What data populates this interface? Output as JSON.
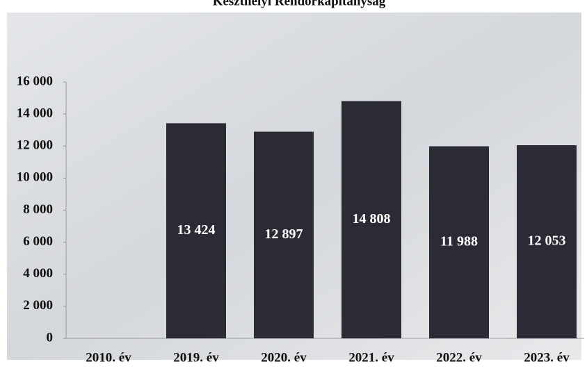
{
  "chart_data": {
    "type": "bar",
    "title": "Keszthelyi Rendőrkapitányság",
    "categories": [
      "2010. év",
      "2019. év",
      "2020. év",
      "2021. év",
      "2022. év",
      "2023. év"
    ],
    "values": [
      null,
      13424,
      12897,
      14808,
      11988,
      12053
    ],
    "value_labels": [
      null,
      "13 424",
      "12 897",
      "14 808",
      "11 988",
      "12 053"
    ],
    "color": "#2b2b35",
    "ylim": [
      0,
      16000
    ],
    "yticks": [
      0,
      {
        "value": 2000,
        "label": "2 000"
      },
      {
        "value": 4000,
        "label": "4 000"
      },
      {
        "value": 6000,
        "label": "6 000"
      },
      {
        "value": 8000,
        "label": "8 000"
      },
      {
        "value": 10000,
        "label": "10 000"
      },
      {
        "value": 12000,
        "label": "12 000"
      },
      {
        "value": 14000,
        "label": "14 000"
      },
      {
        "value": 16000,
        "label": "16 000"
      }
    ],
    "grid": false
  }
}
